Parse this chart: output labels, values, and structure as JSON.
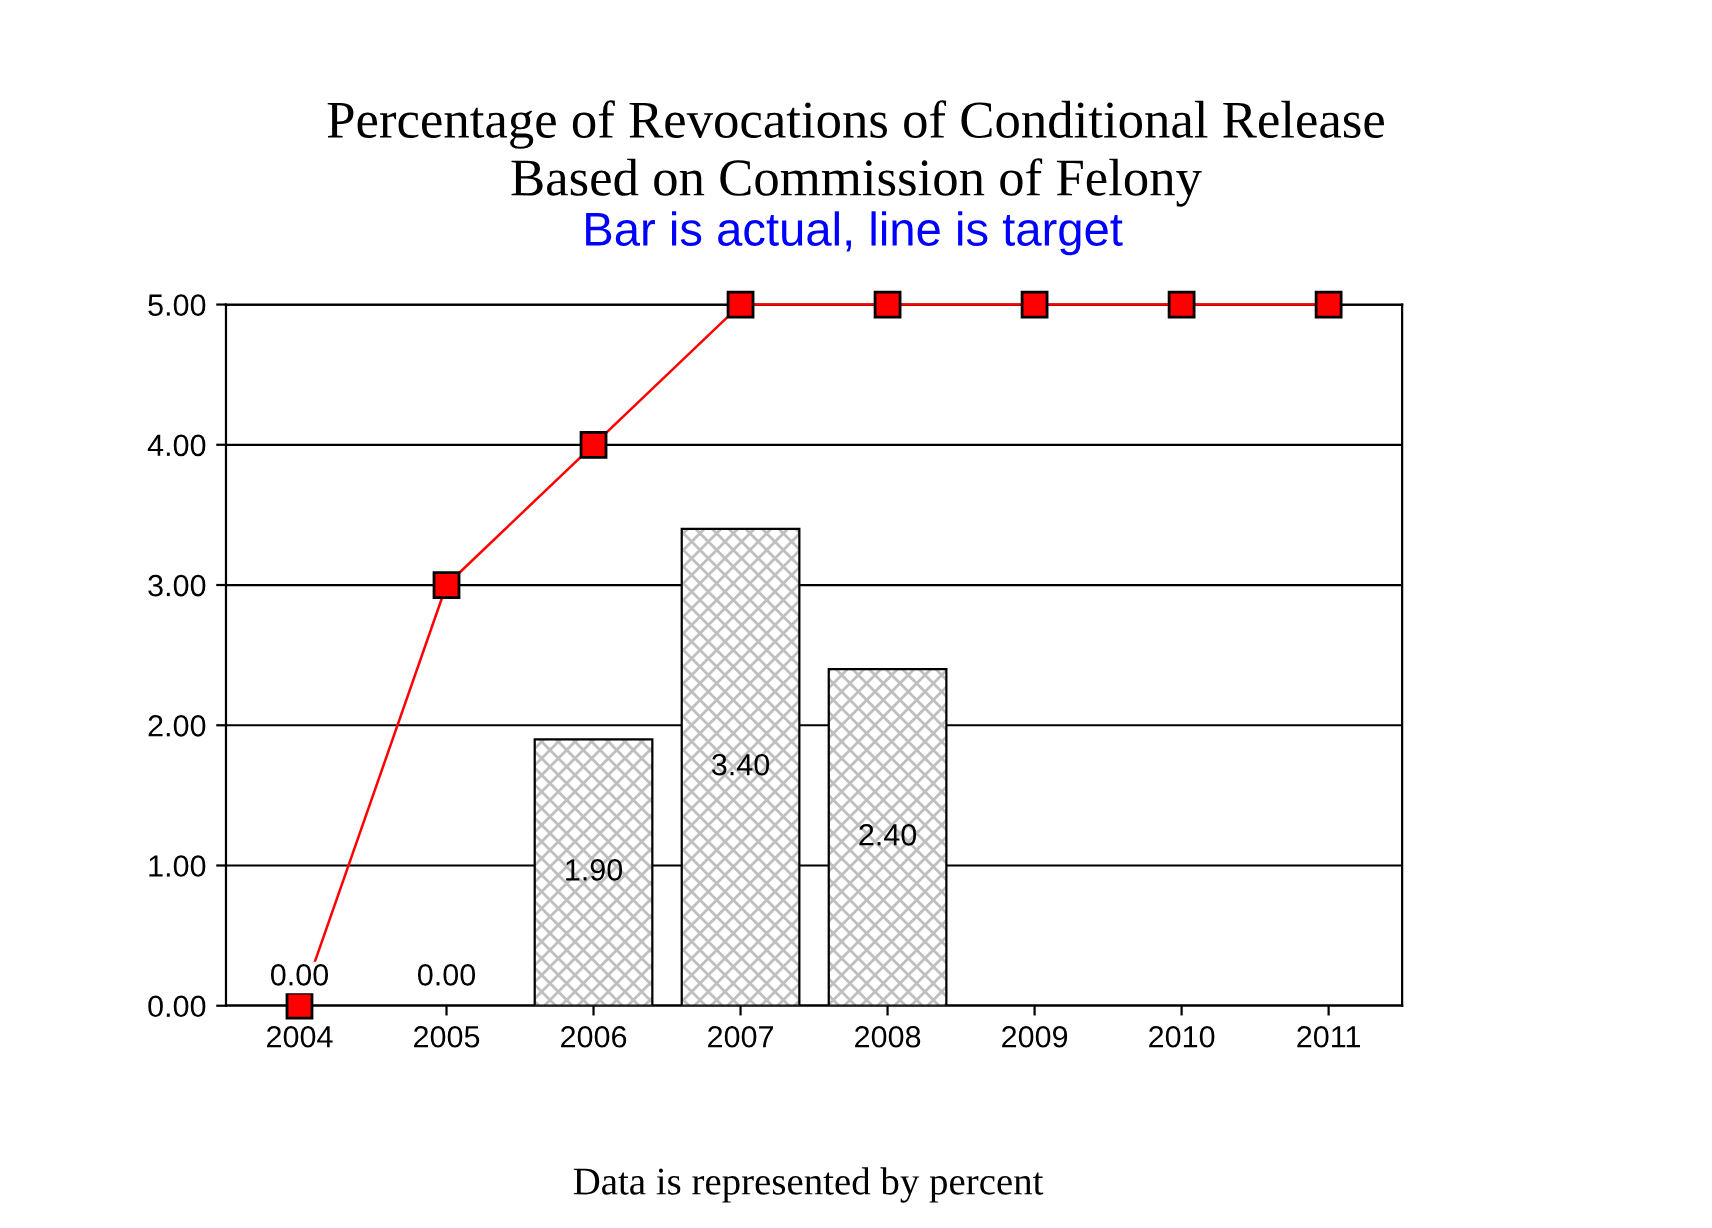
{
  "chart_data": {
    "type": "bar",
    "title": "Percentage of Revocations of Conditional Release\nBased on Commission of Felony",
    "subtitle": "Bar is actual, line is target",
    "categories": [
      "2004",
      "2005",
      "2006",
      "2007",
      "2008",
      "2009",
      "2010",
      "2011"
    ],
    "series": [
      {
        "color": "#000000",
        "values": [
          0,
          0,
          1.9,
          3.4,
          2.4,
          null,
          null,
          null
        ],
        "value_labels": [
          "0.00",
          "0.00",
          "1.90",
          "3.40",
          "2.40",
          null,
          null,
          null
        ]
      },
      {
        "type": "line",
        "color": "#ff0000",
        "marker": "square",
        "values": [
          0,
          3,
          4,
          5,
          5,
          5,
          5,
          5
        ]
      }
    ],
    "ylim": [
      0,
      5
    ],
    "yticks": [
      {
        "value": 0,
        "label": "0.00"
      },
      {
        "value": 1,
        "label": "1.00"
      },
      {
        "value": 2,
        "label": "2.00"
      },
      {
        "value": 3,
        "label": "3.00"
      },
      {
        "value": 4,
        "label": "4.00"
      },
      {
        "value": 5,
        "label": "5.00"
      }
    ],
    "grid": "y",
    "legend": false,
    "annotations": [
      "Data is represented by percent"
    ]
  }
}
